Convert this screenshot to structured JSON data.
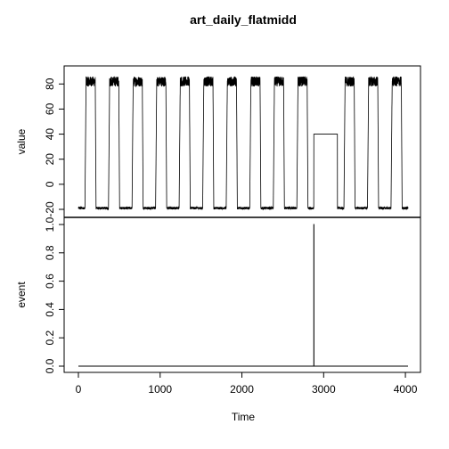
{
  "chart_data": [
    {
      "type": "line",
      "title": "art_daily_flatmidd",
      "xlabel": "",
      "ylabel": "value",
      "xlim": [
        0,
        4032
      ],
      "ylim": [
        -20,
        88
      ],
      "yticks": [
        "-20",
        "0",
        "20",
        "40",
        "60",
        "80"
      ],
      "grid": false,
      "legend": "none",
      "series_color": "#000000",
      "pattern": {
        "period": 288,
        "start_low_x": 0,
        "high_start_offset": 80,
        "high_end_offset": 216,
        "low_value": -19,
        "low_noise": 2,
        "high_value": 82,
        "high_noise": 8,
        "flat_segment": {
          "x_start": 2880,
          "x_end": 3168,
          "value": 40
        }
      }
    },
    {
      "type": "line",
      "title": "",
      "xlabel": "Time",
      "ylabel": "event",
      "xlim": [
        0,
        4032
      ],
      "ylim": [
        0,
        1
      ],
      "xticks": [
        "0",
        "1000",
        "2000",
        "3000",
        "4000"
      ],
      "yticks": [
        "0.0",
        "0.2",
        "0.4",
        "0.6",
        "0.8",
        "1.0"
      ],
      "grid": false,
      "legend": "none",
      "series_color": "#000000",
      "x": [
        0,
        2880,
        2880,
        2881,
        2881,
        4032
      ],
      "y": [
        0,
        0,
        1,
        1,
        0,
        0
      ]
    }
  ]
}
